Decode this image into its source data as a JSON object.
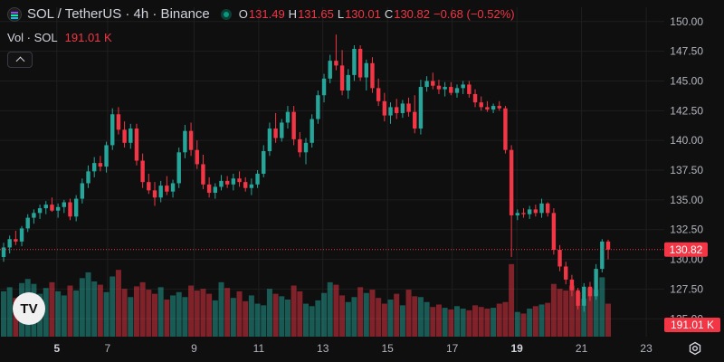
{
  "header": {
    "symbol": "SOL / TetherUS · 4h · Binance",
    "ohlc": [
      {
        "key": "O",
        "value": "131.49"
      },
      {
        "key": "H",
        "value": "131.65"
      },
      {
        "key": "L",
        "value": "130.01"
      },
      {
        "key": "C",
        "value": "130.82"
      }
    ],
    "change": "−0.68 (−0.52%)",
    "volume_label": "Vol · SOL",
    "volume_value": "191.01 K"
  },
  "colors": {
    "up": "#26a69a",
    "down": "#f23645",
    "background": "#0f0f0f",
    "grid": "#1f1f1f",
    "price_line": "#f23645"
  },
  "price_axis": {
    "ticks": [
      "150.00",
      "147.50",
      "145.00",
      "142.50",
      "140.00",
      "137.50",
      "135.00",
      "132.50",
      "130.00",
      "127.50",
      "125.00"
    ],
    "current_price_label": "130.82",
    "volume_label": "191.01 K"
  },
  "time_axis": {
    "ticks": [
      {
        "label": "5",
        "major": true
      },
      {
        "label": "7",
        "major": false
      },
      {
        "label": "9",
        "major": false
      },
      {
        "label": "11",
        "major": false
      },
      {
        "label": "13",
        "major": false
      },
      {
        "label": "15",
        "major": false
      },
      {
        "label": "17",
        "major": false
      },
      {
        "label": "19",
        "major": true
      },
      {
        "label": "21",
        "major": false
      },
      {
        "label": "23",
        "major": false
      }
    ]
  },
  "logo": "TV",
  "chart_data": {
    "type": "candlestick",
    "ylim": [
      123.5,
      151.2
    ],
    "current_price": 130.82,
    "candles": [
      [
        130.2,
        131.4,
        129.8,
        131.0
      ],
      [
        131.0,
        132.0,
        130.5,
        131.7
      ],
      [
        131.7,
        132.4,
        131.2,
        131.5
      ],
      [
        131.5,
        132.8,
        131.1,
        132.6
      ],
      [
        132.6,
        133.8,
        132.3,
        133.5
      ],
      [
        133.5,
        134.2,
        133.0,
        133.9
      ],
      [
        133.9,
        134.6,
        133.4,
        134.3
      ],
      [
        134.3,
        134.9,
        133.8,
        134.6
      ],
      [
        134.6,
        135.2,
        134.0,
        134.1
      ],
      [
        134.1,
        134.7,
        133.5,
        134.4
      ],
      [
        134.4,
        135.0,
        133.9,
        134.8
      ],
      [
        134.8,
        135.1,
        133.3,
        133.6
      ],
      [
        133.6,
        135.4,
        133.2,
        135.1
      ],
      [
        135.1,
        136.8,
        134.7,
        136.4
      ],
      [
        136.4,
        137.9,
        136.0,
        137.4
      ],
      [
        137.4,
        138.6,
        136.9,
        138.1
      ],
      [
        138.1,
        138.7,
        137.4,
        137.8
      ],
      [
        137.8,
        139.9,
        137.3,
        139.6
      ],
      [
        139.6,
        142.7,
        139.2,
        142.2
      ],
      [
        142.2,
        142.8,
        140.5,
        140.9
      ],
      [
        140.9,
        141.6,
        139.4,
        139.8
      ],
      [
        139.8,
        141.4,
        139.3,
        141.0
      ],
      [
        141.0,
        141.4,
        137.9,
        138.3
      ],
      [
        138.3,
        138.9,
        136.0,
        136.5
      ],
      [
        136.5,
        137.2,
        135.5,
        135.8
      ],
      [
        135.8,
        136.5,
        134.5,
        135.2
      ],
      [
        135.2,
        136.6,
        134.8,
        136.2
      ],
      [
        136.2,
        137.0,
        135.4,
        135.7
      ],
      [
        135.7,
        136.7,
        135.2,
        136.4
      ],
      [
        136.4,
        139.4,
        136.0,
        139.0
      ],
      [
        139.0,
        141.3,
        138.5,
        140.8
      ],
      [
        140.8,
        141.5,
        138.7,
        139.2
      ],
      [
        139.2,
        140.0,
        137.6,
        138.0
      ],
      [
        138.0,
        138.8,
        135.9,
        136.3
      ],
      [
        136.3,
        136.9,
        135.2,
        135.6
      ],
      [
        135.6,
        136.4,
        135.1,
        136.1
      ],
      [
        136.1,
        137.1,
        135.8,
        136.6
      ],
      [
        136.6,
        137.0,
        136.0,
        136.3
      ],
      [
        136.3,
        137.2,
        135.8,
        136.8
      ],
      [
        136.8,
        137.4,
        136.1,
        136.5
      ],
      [
        136.5,
        136.9,
        135.7,
        136.0
      ],
      [
        136.0,
        136.8,
        135.4,
        136.3
      ],
      [
        136.3,
        137.5,
        136.0,
        137.2
      ],
      [
        137.2,
        139.6,
        136.9,
        139.1
      ],
      [
        139.1,
        141.5,
        138.7,
        141.0
      ],
      [
        141.0,
        142.3,
        139.8,
        140.2
      ],
      [
        140.2,
        141.8,
        139.9,
        141.5
      ],
      [
        141.5,
        142.9,
        141.0,
        142.4
      ],
      [
        142.4,
        142.9,
        139.6,
        140.1
      ],
      [
        140.1,
        140.7,
        138.6,
        139.0
      ],
      [
        139.0,
        140.2,
        138.0,
        139.8
      ],
      [
        139.8,
        142.2,
        139.4,
        141.8
      ],
      [
        141.8,
        144.2,
        141.4,
        143.8
      ],
      [
        143.8,
        145.6,
        143.2,
        145.2
      ],
      [
        145.2,
        147.2,
        144.8,
        146.7
      ],
      [
        146.7,
        148.9,
        145.9,
        146.3
      ],
      [
        146.3,
        147.6,
        143.8,
        144.2
      ],
      [
        144.2,
        146.0,
        143.5,
        145.5
      ],
      [
        145.5,
        148.0,
        145.0,
        147.7
      ],
      [
        147.7,
        148.0,
        145.0,
        145.3
      ],
      [
        145.3,
        146.8,
        144.2,
        146.5
      ],
      [
        146.5,
        147.0,
        144.0,
        144.4
      ],
      [
        144.4,
        145.2,
        142.9,
        143.3
      ],
      [
        143.3,
        144.0,
        141.6,
        142.1
      ],
      [
        142.1,
        143.2,
        141.4,
        142.8
      ],
      [
        142.8,
        143.5,
        141.8,
        142.3
      ],
      [
        142.3,
        143.4,
        141.9,
        143.1
      ],
      [
        143.1,
        143.6,
        142.0,
        142.4
      ],
      [
        142.4,
        143.8,
        140.6,
        141.0
      ],
      [
        141.0,
        145.1,
        140.5,
        144.5
      ],
      [
        144.5,
        145.4,
        144.1,
        145.0
      ],
      [
        145.0,
        145.7,
        144.3,
        144.6
      ],
      [
        144.6,
        145.1,
        143.9,
        144.3
      ],
      [
        144.3,
        144.9,
        143.7,
        144.5
      ],
      [
        144.5,
        144.9,
        143.8,
        144.0
      ],
      [
        144.0,
        144.7,
        143.6,
        144.4
      ],
      [
        144.4,
        145.0,
        143.9,
        144.7
      ],
      [
        144.7,
        145.0,
        143.6,
        143.9
      ],
      [
        143.9,
        144.3,
        142.8,
        143.2
      ],
      [
        143.2,
        143.7,
        142.5,
        142.8
      ],
      [
        142.8,
        143.3,
        142.4,
        142.6
      ],
      [
        142.6,
        143.1,
        142.3,
        142.9
      ],
      [
        142.9,
        143.3,
        142.5,
        142.7
      ],
      [
        142.7,
        142.9,
        138.9,
        139.2
      ],
      [
        139.2,
        139.6,
        130.2,
        133.7
      ],
      [
        133.7,
        134.2,
        133.3,
        133.9
      ],
      [
        133.9,
        134.3,
        133.5,
        133.8
      ],
      [
        133.8,
        134.5,
        133.4,
        134.2
      ],
      [
        134.2,
        134.6,
        133.6,
        133.9
      ],
      [
        133.9,
        135.1,
        133.5,
        134.7
      ],
      [
        134.7,
        134.8,
        133.6,
        133.9
      ],
      [
        133.9,
        134.3,
        130.4,
        130.8
      ],
      [
        130.8,
        131.2,
        129.0,
        129.4
      ],
      [
        129.4,
        129.8,
        127.9,
        128.3
      ],
      [
        128.3,
        128.7,
        126.9,
        127.4
      ],
      [
        127.4,
        127.6,
        125.8,
        126.1
      ],
      [
        126.1,
        128.0,
        125.6,
        127.7
      ],
      [
        127.7,
        128.1,
        126.5,
        126.9
      ],
      [
        126.9,
        129.6,
        126.6,
        129.2
      ],
      [
        129.2,
        131.7,
        128.9,
        131.5
      ],
      [
        131.5,
        131.65,
        130.01,
        130.82
      ]
    ],
    "volume": [
      55,
      60,
      47,
      65,
      70,
      64,
      52,
      59,
      66,
      55,
      50,
      62,
      56,
      71,
      78,
      67,
      63,
      54,
      73,
      81,
      58,
      48,
      61,
      66,
      57,
      52,
      60,
      45,
      50,
      54,
      48,
      62,
      56,
      58,
      52,
      44,
      66,
      59,
      47,
      55,
      43,
      50,
      40,
      38,
      58,
      52,
      49,
      45,
      62,
      55,
      40,
      37,
      44,
      53,
      66,
      63,
      50,
      42,
      48,
      60,
      53,
      57,
      47,
      40,
      45,
      52,
      38,
      57,
      49,
      48,
      42,
      36,
      39,
      35,
      33,
      37,
      34,
      32,
      38,
      36,
      34,
      35,
      40,
      42,
      88,
      30,
      28,
      34,
      37,
      39,
      41,
      64,
      58,
      56,
      62,
      54,
      46,
      59,
      57,
      72,
      40
    ],
    "volume_up_flags": [
      1,
      1,
      0,
      1,
      1,
      1,
      1,
      1,
      0,
      1,
      1,
      0,
      1,
      1,
      1,
      1,
      0,
      1,
      1,
      0,
      0,
      1,
      0,
      0,
      0,
      0,
      1,
      0,
      1,
      1,
      1,
      0,
      0,
      0,
      0,
      1,
      1,
      0,
      1,
      0,
      0,
      1,
      1,
      1,
      1,
      0,
      1,
      1,
      0,
      0,
      1,
      1,
      1,
      1,
      1,
      0,
      0,
      1,
      1,
      0,
      1,
      0,
      0,
      0,
      1,
      0,
      1,
      0,
      0,
      1,
      1,
      0,
      0,
      1,
      0,
      1,
      1,
      0,
      0,
      0,
      0,
      1,
      0,
      0,
      0,
      1,
      0,
      1,
      0,
      1,
      0,
      0,
      0,
      0,
      0,
      0,
      1,
      0,
      1,
      1,
      0
    ]
  }
}
